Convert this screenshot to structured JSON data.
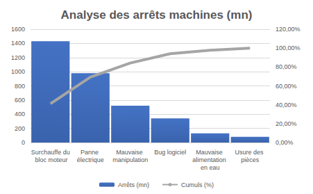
{
  "chart_data": {
    "type": "bar",
    "title": "Analyse des arrêts machines (mn)",
    "categories": [
      "Surchauffe du bloc moteur",
      "Panne électrique",
      "Mauvaise manipulation",
      "Bug logiciel",
      "Mauvaise alimentation en eau",
      "Usure des pièces"
    ],
    "series": [
      {
        "name": "Arrêts (mn)",
        "type": "bar",
        "color": "#4472c4",
        "values": [
          1430,
          980,
          520,
          340,
          130,
          80
        ]
      },
      {
        "name": "Cumuls (%)",
        "type": "line",
        "axis": "y2",
        "color": "#a5a5a5",
        "line_style": "solid",
        "values": [
          41.1,
          69.3,
          84.2,
          94.0,
          97.7,
          100
        ]
      }
    ],
    "ylim": [
      0,
      1600
    ],
    "yticks": [
      0,
      200,
      400,
      600,
      800,
      1000,
      1200,
      1400,
      1600
    ],
    "y2lim": [
      0,
      120
    ],
    "y2ticks": [
      {
        "value": 0,
        "label": "0,00%"
      },
      {
        "value": 20,
        "label": "20,00%"
      },
      {
        "value": 40,
        "label": "40,00%"
      },
      {
        "value": 60,
        "label": "60,00%"
      },
      {
        "value": 80,
        "label": "80,00%"
      },
      {
        "value": 100,
        "label": "100,00%"
      },
      {
        "value": 120,
        "label": "120,00%"
      }
    ],
    "grid": true,
    "legend": "bottom"
  }
}
